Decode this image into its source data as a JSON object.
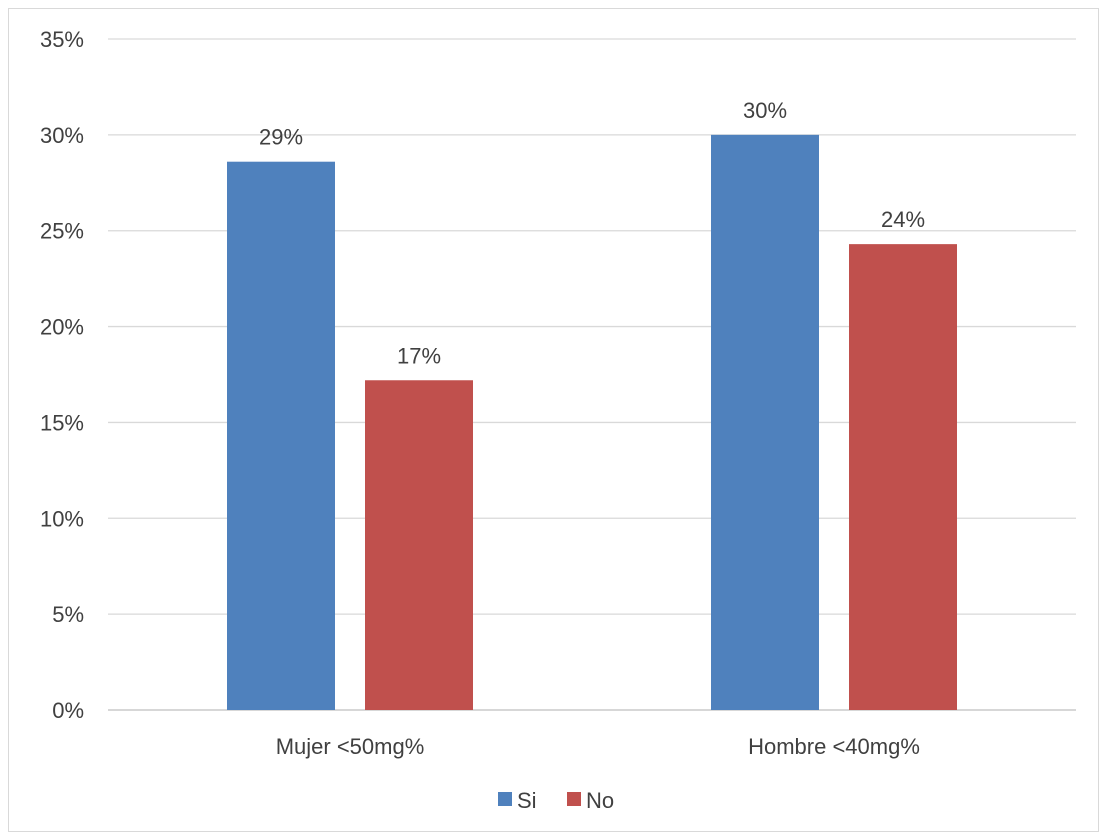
{
  "chart_data": {
    "type": "bar",
    "title": "",
    "xlabel": "",
    "ylabel": "",
    "categories": [
      "Mujer <50mg%",
      "Hombre <40mg%"
    ],
    "series": [
      {
        "name": "Si",
        "values": [
          0.286,
          0.3
        ],
        "labels": [
          "29%",
          "30%"
        ],
        "color": "#4f81bd"
      },
      {
        "name": "No",
        "values": [
          0.172,
          0.243
        ],
        "labels": [
          "17%",
          "24%"
        ],
        "color": "#c0504d"
      }
    ],
    "ylim": [
      0,
      0.35
    ],
    "y_ticks": [
      "0%",
      "5%",
      "10%",
      "15%",
      "20%",
      "25%",
      "30%",
      "35%"
    ],
    "grid": true,
    "legend_position": "bottom"
  }
}
